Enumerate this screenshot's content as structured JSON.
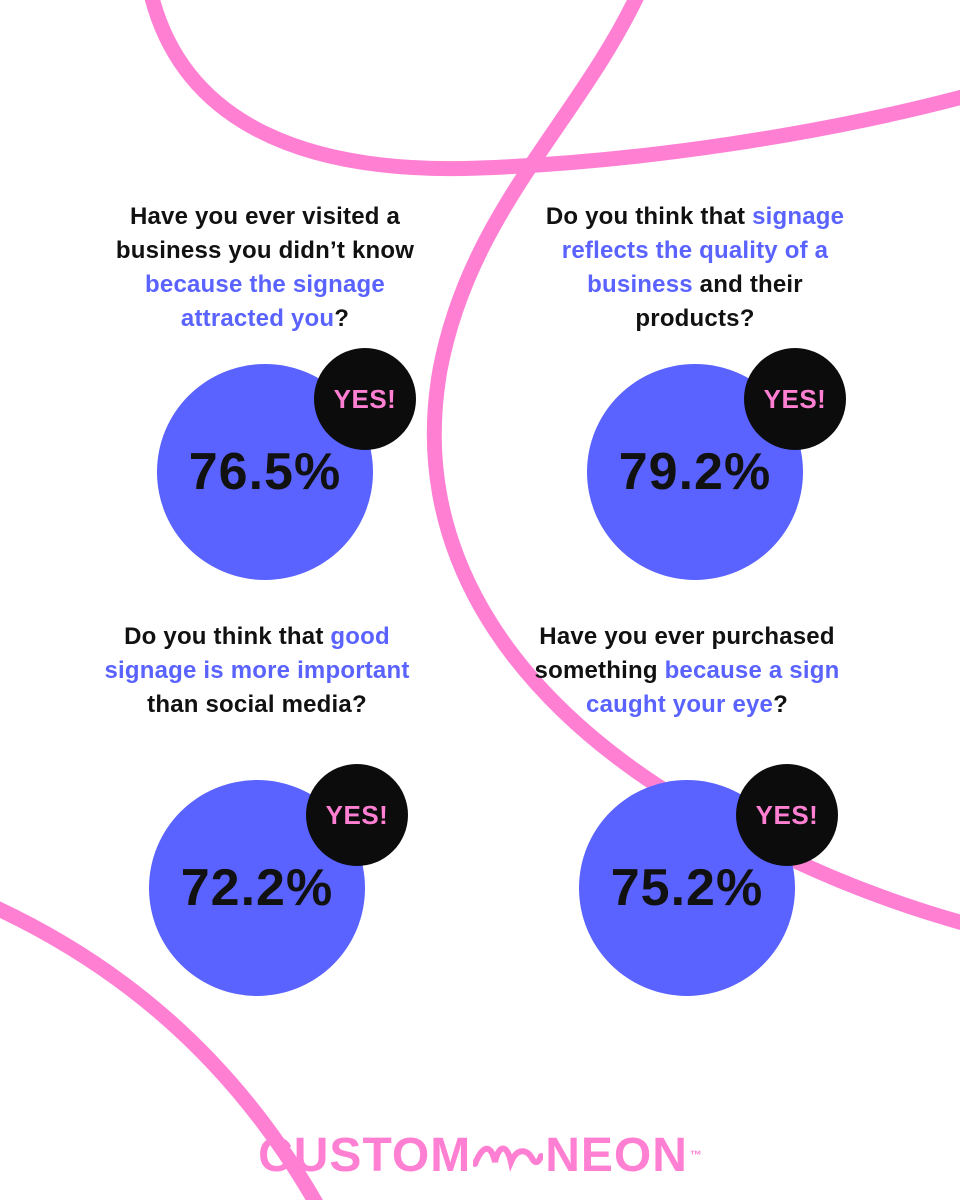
{
  "colors": {
    "accent": "#5a63ff",
    "pink": "#ff7fd3",
    "dark": "#0c0c0c"
  },
  "cards": [
    {
      "q_before": "Have you ever visited a business you didn’t know ",
      "q_highlight": "because the signage attracted you",
      "q_after": "?",
      "badge": "YES!",
      "percent": "76.5%"
    },
    {
      "q_before": "Do you think that ",
      "q_highlight": "signage reflects the quality of a business",
      "q_after": " and their products?",
      "badge": "YES!",
      "percent": "79.2%"
    },
    {
      "q_before": "Do you think that ",
      "q_highlight": "good signage is more important",
      "q_after": " than social media?",
      "badge": "YES!",
      "percent": "72.2%"
    },
    {
      "q_before": "Have you ever purchased something ",
      "q_highlight": "because a sign caught your eye",
      "q_after": "?",
      "badge": "YES!",
      "percent": "75.2%"
    }
  ],
  "logo": {
    "left": "CUSTOM",
    "right": "NEON",
    "tm": "™"
  }
}
